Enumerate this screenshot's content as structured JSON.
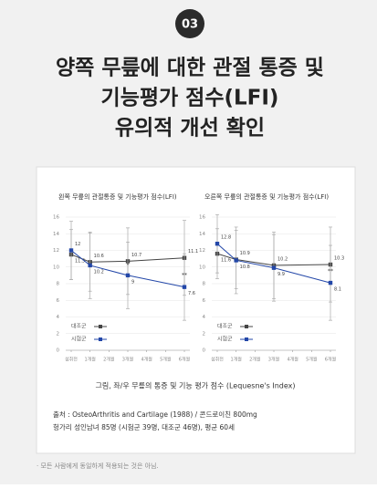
{
  "badge": "03",
  "title_lines": [
    "양쪽 무릎에 대한 관절 통증 및",
    "기능평가 점수(LFI)",
    "유의적 개선 확인"
  ],
  "chart_data": [
    {
      "type": "line",
      "title": "왼쪽 무릎의 관절통증 및 기능평가 점수(LFI)",
      "xlim": [
        0,
        6
      ],
      "xticks": [
        {
          "value": 0,
          "label": "섭취전"
        },
        {
          "value": 1,
          "label": "1개월"
        },
        {
          "value": 2,
          "label": "2개월"
        },
        {
          "value": 3,
          "label": "3개월"
        },
        {
          "value": 4,
          "label": "4개월"
        },
        {
          "value": 5,
          "label": "5개월"
        },
        {
          "value": 6,
          "label": "6개월"
        }
      ],
      "ylim": [
        0,
        16
      ],
      "yticks": [
        0,
        2,
        4,
        6,
        8,
        10,
        12,
        14,
        16
      ],
      "grid": true,
      "legend": "lower left",
      "series": [
        {
          "name": "대조군",
          "color": "#444444",
          "x": [
            0,
            1,
            3,
            6
          ],
          "values": [
            11.5,
            10.6,
            10.7,
            11.1
          ],
          "errors": [
            3,
            3.5,
            4,
            4.5
          ]
        },
        {
          "name": "시험군",
          "color": "#2347a8",
          "x": [
            0,
            1,
            3,
            6
          ],
          "values": [
            12,
            10.2,
            9,
            7.6
          ],
          "errors": [
            3.5,
            4,
            4,
            4
          ]
        }
      ],
      "annotations": [
        {
          "text": "*",
          "x": 3,
          "y": 10.2
        },
        {
          "text": "**",
          "x": 6,
          "y": 9
        }
      ]
    },
    {
      "type": "line",
      "title": "오른쪽 무릎의 관절통증 및 기능평가 점수(LFI)",
      "xlim": [
        0,
        6
      ],
      "xticks": [
        {
          "value": 0,
          "label": "섭취전"
        },
        {
          "value": 1,
          "label": "1개월"
        },
        {
          "value": 2,
          "label": "2개월"
        },
        {
          "value": 3,
          "label": "3개월"
        },
        {
          "value": 4,
          "label": "4개월"
        },
        {
          "value": 5,
          "label": "5개월"
        },
        {
          "value": 6,
          "label": "6개월"
        }
      ],
      "ylim": [
        0,
        16
      ],
      "yticks": [
        0,
        2,
        4,
        6,
        8,
        10,
        12,
        14,
        16
      ],
      "grid": true,
      "legend": "lower left",
      "series": [
        {
          "name": "대조군",
          "color": "#444444",
          "x": [
            0,
            1,
            3,
            6
          ],
          "values": [
            11.6,
            10.9,
            10.2,
            10.3
          ],
          "errors": [
            3,
            3.5,
            4,
            4.5
          ]
        },
        {
          "name": "시험군",
          "color": "#2347a8",
          "x": [
            0,
            1,
            3,
            6
          ],
          "values": [
            12.8,
            10.8,
            9.9,
            8.1
          ],
          "errors": [
            3.5,
            4,
            4,
            4.5
          ]
        }
      ],
      "annotations": [
        {
          "text": "**",
          "x": 6,
          "y": 9.5
        }
      ]
    }
  ],
  "caption": "그림, 좌/우 무릎의 통증 및 기능 평가 점수 (Lequesne's Index)",
  "source_lines": [
    "출처 : OsteoArthritis and Cartilage (1988) / 콘드로이친 800mg",
    "헝가리 성인남녀 85명 (시험군 39명, 대조군 46명), 평균 60세"
  ],
  "footnote": "· 모든 사람에게 동일하게 적용되는 것은 아님."
}
